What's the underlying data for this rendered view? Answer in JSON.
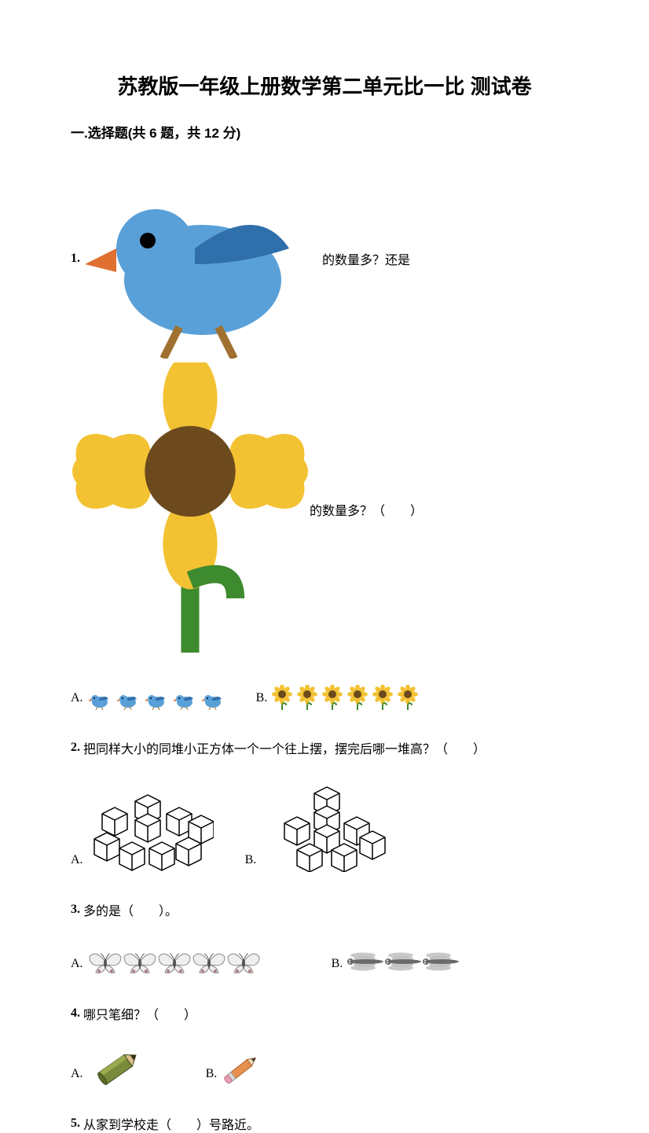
{
  "title": "苏教版一年级上册数学第二单元比一比 测试卷",
  "section1": {
    "header": "一.选择题(共 6 题，共 12 分)"
  },
  "q1": {
    "num": "1.",
    "text_a": "的数量多？还是",
    "text_b": "的数量多？（　　）",
    "optA": "A.",
    "optB": "B.",
    "birds_count": 5,
    "sunflowers_count": 6,
    "colors": {
      "bird_body": "#5aa0d8",
      "bird_wing": "#2f6fab",
      "bird_beak": "#e07030",
      "sunflower_petal": "#f3c233",
      "sunflower_center": "#6c4a1e",
      "sunflower_stem": "#3e8a2e"
    }
  },
  "q2": {
    "num": "2.",
    "text": "把同样大小的同堆小正方体一个一个往上摆，摆完后哪一堆高？（　　）",
    "optA": "A.",
    "optB": "B.",
    "cube_edge": "#000000",
    "cube_face": "#ffffff"
  },
  "q3": {
    "num": "3.",
    "text": "多的是（　　）。",
    "optA": "A.",
    "optB": "B.",
    "butterflies_count": 5,
    "dragonflies_count": 3,
    "colors": {
      "butterfly_wing": "#f0eef0",
      "butterfly_edge": "#888888",
      "butterfly_dot": "#b08080",
      "dragonfly_body": "#6a6a6a",
      "dragonfly_wing": "#bfbfbf"
    }
  },
  "q4": {
    "num": "4.",
    "text": "哪只笔细？（　　）",
    "optA": "A.",
    "optB": "B.",
    "colors": {
      "pencilA_body": "#7a8a3a",
      "pencilA_tip": "#3a2a1a",
      "pencilB_body": "#e89050",
      "pencilB_eraser": "#e8a0b0",
      "pencilB_ferrule": "#d8d8d8"
    }
  },
  "q5": {
    "num": "5.",
    "text": "从家到学校走（　　）号路近。"
  }
}
